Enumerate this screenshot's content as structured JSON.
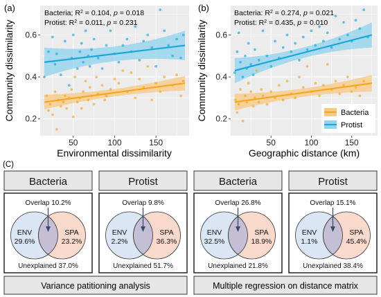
{
  "colors": {
    "bacteria": "#f5a623",
    "protist": "#1aa7d8",
    "bacteria_band": "#f8c982",
    "protist_band": "#8fd3ef",
    "panel_bg": "#ececec",
    "grid": "#ffffff",
    "env_circle": "#dbe6f5",
    "spa_circle": "#f9d9cc",
    "overlap": "#c5bfd6",
    "box_header_bg": "#e6e6e6"
  },
  "chart_data": [
    {
      "type": "scatter",
      "panel_label": "(a)",
      "xlabel": "Environmental dissimilarity",
      "ylabel": "Community dissimilarity",
      "xlim": [
        10,
        190
      ],
      "ylim": [
        0.12,
        0.74
      ],
      "xticks": [
        50,
        100,
        150
      ],
      "yticks": [
        0.2,
        0.4,
        0.6
      ],
      "tick_labels_x": [
        "50",
        "100",
        "150"
      ],
      "tick_labels_y": [
        "0.2",
        "0.4",
        "0.6"
      ],
      "grid": true,
      "stats": [
        {
          "name": "Bacteria",
          "r2": "0.104",
          "p": "0.018"
        },
        {
          "name": "Protist",
          "r2": "0.011",
          "p": "0.231"
        }
      ],
      "series": [
        {
          "name": "Bacteria",
          "fit": [
            [
              15,
              0.28
            ],
            [
              185,
              0.37
            ]
          ],
          "ci_halfwidth_edges": 0.035,
          "ci_halfwidth_center": 0.018,
          "points": [
            [
              18,
              0.31
            ],
            [
              20,
              0.24
            ],
            [
              22,
              0.27
            ],
            [
              25,
              0.22
            ],
            [
              28,
              0.33
            ],
            [
              30,
              0.15
            ],
            [
              32,
              0.29
            ],
            [
              35,
              0.26
            ],
            [
              38,
              0.28
            ],
            [
              40,
              0.31
            ],
            [
              42,
              0.25
            ],
            [
              45,
              0.3
            ],
            [
              48,
              0.34
            ],
            [
              50,
              0.21
            ],
            [
              52,
              0.4
            ],
            [
              55,
              0.28
            ],
            [
              58,
              0.3
            ],
            [
              60,
              0.25
            ],
            [
              62,
              0.33
            ],
            [
              65,
              0.38
            ],
            [
              68,
              0.29
            ],
            [
              70,
              0.35
            ],
            [
              72,
              0.31
            ],
            [
              75,
              0.27
            ],
            [
              78,
              0.4
            ],
            [
              80,
              0.32
            ],
            [
              85,
              0.36
            ],
            [
              88,
              0.29
            ],
            [
              90,
              0.31
            ],
            [
              95,
              0.34
            ],
            [
              100,
              0.39
            ],
            [
              105,
              0.37
            ],
            [
              110,
              0.43
            ],
            [
              115,
              0.33
            ],
            [
              120,
              0.42
            ],
            [
              125,
              0.3
            ],
            [
              130,
              0.39
            ],
            [
              135,
              0.35
            ],
            [
              140,
              0.45
            ],
            [
              145,
              0.29
            ],
            [
              150,
              0.37
            ],
            [
              155,
              0.33
            ],
            [
              160,
              0.4
            ],
            [
              170,
              0.36
            ],
            [
              175,
              0.41
            ],
            [
              180,
              0.31
            ],
            [
              183,
              0.38
            ]
          ]
        },
        {
          "name": "Protist",
          "fit": [
            [
              15,
              0.47
            ],
            [
              185,
              0.55
            ]
          ],
          "ci_halfwidth_edges": 0.07,
          "ci_halfwidth_center": 0.035,
          "points": [
            [
              15,
              0.4
            ],
            [
              20,
              0.52
            ],
            [
              25,
              0.59
            ],
            [
              28,
              0.46
            ],
            [
              30,
              0.51
            ],
            [
              35,
              0.41
            ],
            [
              40,
              0.57
            ],
            [
              45,
              0.36
            ],
            [
              48,
              0.49
            ],
            [
              50,
              0.6
            ],
            [
              55,
              0.44
            ],
            [
              58,
              0.52
            ],
            [
              60,
              0.56
            ],
            [
              62,
              0.47
            ],
            [
              65,
              0.62
            ],
            [
              68,
              0.5
            ],
            [
              70,
              0.45
            ],
            [
              72,
              0.53
            ],
            [
              75,
              0.58
            ],
            [
              80,
              0.49
            ],
            [
              85,
              0.44
            ],
            [
              90,
              0.55
            ],
            [
              95,
              0.62
            ],
            [
              100,
              0.51
            ],
            [
              105,
              0.47
            ],
            [
              110,
              0.55
            ],
            [
              115,
              0.58
            ],
            [
              120,
              0.52
            ],
            [
              125,
              0.64
            ],
            [
              130,
              0.48
            ],
            [
              135,
              0.57
            ],
            [
              140,
              0.6
            ],
            [
              145,
              0.54
            ],
            [
              150,
              0.45
            ],
            [
              155,
              0.72
            ],
            [
              160,
              0.62
            ],
            [
              165,
              0.55
            ],
            [
              170,
              0.5
            ],
            [
              175,
              0.58
            ],
            [
              180,
              0.49
            ],
            [
              183,
              0.6
            ]
          ]
        }
      ]
    },
    {
      "type": "scatter",
      "panel_label": "(b)",
      "xlabel": "Geographic distance (km)",
      "ylabel": "Community dissimilarity",
      "xlim": [
        0,
        182
      ],
      "ylim": [
        0.12,
        0.74
      ],
      "xticks": [
        50,
        100,
        150
      ],
      "yticks": [
        0.2,
        0.4,
        0.6
      ],
      "tick_labels_x": [
        "50",
        "100",
        "150"
      ],
      "tick_labels_y": [
        "0.2",
        "0.4",
        "0.6"
      ],
      "grid": true,
      "legend_position": "bottom-right",
      "stats": [
        {
          "name": "Bacteria",
          "r2": "0.274",
          "p": "0.021"
        },
        {
          "name": "Protist",
          "r2": "0.435",
          "p": "0.010"
        }
      ],
      "series": [
        {
          "name": "Bacteria",
          "fit": [
            [
              5,
              0.28
            ],
            [
              175,
              0.37
            ]
          ],
          "ci_halfwidth_edges": 0.04,
          "ci_halfwidth_center": 0.02,
          "points": [
            [
              6,
              0.29
            ],
            [
              8,
              0.23
            ],
            [
              10,
              0.27
            ],
            [
              12,
              0.34
            ],
            [
              15,
              0.19
            ],
            [
              18,
              0.31
            ],
            [
              20,
              0.28
            ],
            [
              22,
              0.37
            ],
            [
              25,
              0.33
            ],
            [
              28,
              0.26
            ],
            [
              30,
              0.3
            ],
            [
              32,
              0.43
            ],
            [
              35,
              0.28
            ],
            [
              38,
              0.34
            ],
            [
              40,
              0.31
            ],
            [
              45,
              0.27
            ],
            [
              50,
              0.33
            ],
            [
              55,
              0.3
            ],
            [
              60,
              0.36
            ],
            [
              65,
              0.29
            ],
            [
              70,
              0.38
            ],
            [
              75,
              0.32
            ],
            [
              80,
              0.3
            ],
            [
              85,
              0.4
            ],
            [
              90,
              0.35
            ],
            [
              95,
              0.45
            ],
            [
              100,
              0.33
            ],
            [
              105,
              0.37
            ],
            [
              110,
              0.31
            ],
            [
              115,
              0.36
            ],
            [
              120,
              0.46
            ],
            [
              125,
              0.34
            ],
            [
              130,
              0.38
            ],
            [
              135,
              0.32
            ],
            [
              140,
              0.36
            ],
            [
              145,
              0.4
            ],
            [
              150,
              0.33
            ],
            [
              155,
              0.35
            ],
            [
              160,
              0.31
            ],
            [
              165,
              0.38
            ]
          ]
        },
        {
          "name": "Protist",
          "fit": [
            [
              5,
              0.43
            ],
            [
              175,
              0.6
            ]
          ],
          "ci_halfwidth_edges": 0.06,
          "ci_halfwidth_center": 0.025,
          "points": [
            [
              5,
              0.42
            ],
            [
              8,
              0.52
            ],
            [
              10,
              0.61
            ],
            [
              12,
              0.47
            ],
            [
              15,
              0.4
            ],
            [
              18,
              0.5
            ],
            [
              20,
              0.44
            ],
            [
              22,
              0.56
            ],
            [
              25,
              0.46
            ],
            [
              28,
              0.41
            ],
            [
              30,
              0.53
            ],
            [
              35,
              0.48
            ],
            [
              40,
              0.62
            ],
            [
              45,
              0.5
            ],
            [
              50,
              0.45
            ],
            [
              55,
              0.57
            ],
            [
              60,
              0.49
            ],
            [
              65,
              0.54
            ],
            [
              70,
              0.6
            ],
            [
              75,
              0.52
            ],
            [
              80,
              0.56
            ],
            [
              85,
              0.48
            ],
            [
              90,
              0.59
            ],
            [
              95,
              0.53
            ],
            [
              100,
              0.62
            ],
            [
              105,
              0.55
            ],
            [
              110,
              0.64
            ],
            [
              115,
              0.57
            ],
            [
              120,
              0.61
            ],
            [
              125,
              0.54
            ],
            [
              130,
              0.69
            ],
            [
              135,
              0.58
            ],
            [
              140,
              0.66
            ],
            [
              145,
              0.6
            ],
            [
              150,
              0.57
            ],
            [
              155,
              0.67
            ],
            [
              160,
              0.63
            ],
            [
              165,
              0.72
            ],
            [
              170,
              0.59
            ]
          ]
        }
      ]
    }
  ],
  "legend": [
    "Bacteria",
    "Protist"
  ],
  "panel_c": {
    "label": "(C)",
    "boxes": [
      {
        "title": "Bacteria",
        "overlap": "Overlap 10.2%",
        "env_label": "ENV",
        "env_value": "29.6%",
        "spa_label": "SPA",
        "spa_value": "23.2%",
        "unexplained": "Unexplained 37.0%"
      },
      {
        "title": "Protist",
        "overlap": "Overlap 9.8%",
        "env_label": "ENV",
        "env_value": "2.2%",
        "spa_label": "SPA",
        "spa_value": "36.3%",
        "unexplained": "Unexplained 51.7%"
      },
      {
        "title": "Bacteria",
        "overlap": "Overlap 26.8%",
        "env_label": "ENV",
        "env_value": "32.5%",
        "spa_label": "SPA",
        "spa_value": "18.9%",
        "unexplained": "Unexplained 21.8%"
      },
      {
        "title": "Protist",
        "overlap": "Overlap 15.1%",
        "env_label": "ENV",
        "env_value": "1.1%",
        "spa_label": "SPA",
        "spa_value": "45.4%",
        "unexplained": "Unexplained 38.4%"
      }
    ],
    "footers": [
      "Variance patitioning analysis",
      "Multiple regression on distance matrix"
    ]
  }
}
